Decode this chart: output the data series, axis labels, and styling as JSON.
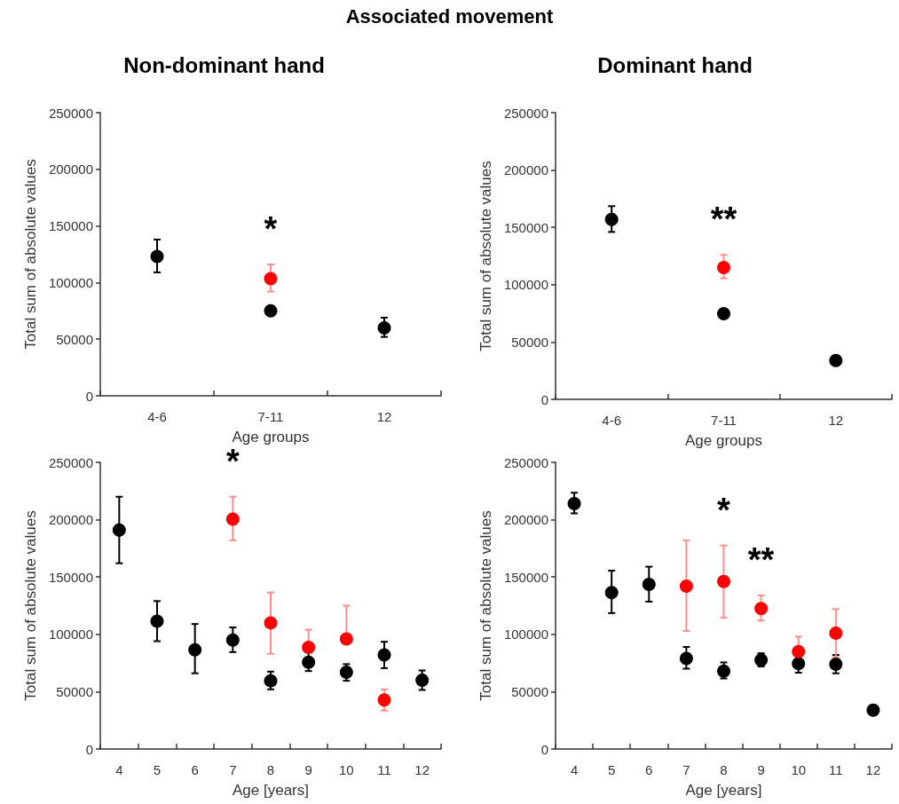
{
  "chart_data": [
    {
      "type": "scatter",
      "title": "Non-dominant hand",
      "xlabel": "Age groups",
      "ylabel": "Total sum of absolute values",
      "categories": [
        "4-6",
        "7-11",
        "12"
      ],
      "ylim": [
        0,
        250000
      ],
      "yticks": [
        0,
        50000,
        100000,
        150000,
        200000,
        250000
      ],
      "grid": false,
      "marker": "circle",
      "series": [
        {
          "color": "#000000",
          "values": [
            123000,
            75000,
            60000
          ],
          "errors": [
            [
              109000,
              138000
            ],
            null,
            [
              52000,
              69000
            ]
          ]
        },
        {
          "color": "#ff0000",
          "values": [
            null,
            103500,
            null
          ],
          "errors": [
            null,
            [
              92000,
              116000
            ],
            null
          ]
        }
      ],
      "annotations": [
        "Associated movement",
        {
          "text": "*",
          "x": "7-11",
          "y": 103500
        }
      ]
    },
    {
      "type": "scatter",
      "title": "Dominant hand",
      "xlabel": "Age groups",
      "ylabel": "Total sum of absolute values",
      "categories": [
        "4-6",
        "7-11",
        "12"
      ],
      "ylim": [
        0,
        250000
      ],
      "yticks": [
        0,
        50000,
        100000,
        150000,
        200000,
        250000
      ],
      "grid": false,
      "marker": "circle",
      "series": [
        {
          "color": "#000000",
          "values": [
            157000,
            74600,
            33800
          ],
          "errors": [
            [
              146000,
              168500
            ],
            null,
            null
          ]
        },
        {
          "color": "#ff0000",
          "values": [
            null,
            115000,
            null
          ],
          "errors": [
            null,
            [
              105500,
              126000
            ],
            null
          ]
        }
      ],
      "annotations": [
        {
          "text": "**",
          "x": "7-11",
          "y": 115000
        }
      ]
    },
    {
      "type": "scatter",
      "xlabel": "Age [years]",
      "ylabel": "Total sum of absolute values",
      "categories": [
        "4",
        "5",
        "6",
        "7",
        "8",
        "9",
        "10",
        "11",
        "12"
      ],
      "ylim": [
        0,
        250000
      ],
      "yticks": [
        0,
        50000,
        100000,
        150000,
        200000,
        250000
      ],
      "grid": false,
      "marker": "circle",
      "series": [
        {
          "color": "#000000",
          "values": [
            191000,
            111500,
            86500,
            95000,
            59500,
            75700,
            67000,
            82000,
            60000
          ],
          "errors": [
            [
              162000,
              220000
            ],
            [
              94000,
              129000
            ],
            [
              66000,
              109000
            ],
            [
              84500,
              106000
            ],
            [
              52000,
              67500
            ],
            [
              68000,
              84500
            ],
            [
              59500,
              74000
            ],
            [
              70500,
              93500
            ],
            [
              51500,
              68500
            ]
          ]
        },
        {
          "color": "#ff0000",
          "values": [
            null,
            null,
            null,
            200500,
            110000,
            88600,
            96000,
            42700,
            null
          ],
          "errors": [
            null,
            null,
            null,
            [
              182000,
              220000
            ],
            [
              83000,
              136500
            ],
            [
              88600,
              104000
            ],
            [
              96000,
              125000
            ],
            [
              33500,
              52000
            ],
            null
          ]
        }
      ],
      "annotations": [
        {
          "text": "*",
          "x": "7",
          "y": 200500
        }
      ]
    },
    {
      "type": "scatter",
      "xlabel": "Age [years]",
      "ylabel": "Total sum of absolute values",
      "categories": [
        "4",
        "5",
        "6",
        "7",
        "8",
        "9",
        "10",
        "11",
        "12"
      ],
      "ylim": [
        0,
        250000
      ],
      "yticks": [
        0,
        50000,
        100000,
        150000,
        200000,
        250000
      ],
      "grid": false,
      "marker": "circle",
      "series": [
        {
          "color": "#000000",
          "values": [
            214000,
            136500,
            143500,
            79000,
            68000,
            77500,
            74500,
            74000,
            33800
          ],
          "errors": [
            [
              205500,
              223500
            ],
            [
              118500,
              155500
            ],
            [
              128500,
              159000
            ],
            [
              70000,
              89000
            ],
            [
              61500,
              75500
            ],
            [
              72000,
              83500
            ],
            [
              66500,
              81500
            ],
            [
              66000,
              82000
            ],
            null
          ]
        },
        {
          "color": "#ff0000",
          "values": [
            null,
            null,
            null,
            142000,
            146000,
            122500,
            85000,
            101000,
            null
          ],
          "errors": [
            null,
            null,
            null,
            [
              103000,
              182000
            ],
            [
              114500,
              177500
            ],
            [
              112000,
              134000
            ],
            [
              85000,
              98000
            ],
            [
              80000,
              122000
            ],
            null
          ]
        }
      ],
      "annotations": [
        {
          "text": "*",
          "x": "8",
          "y": 146000
        },
        {
          "text": "**",
          "x": "9",
          "y": 122500
        }
      ]
    }
  ]
}
